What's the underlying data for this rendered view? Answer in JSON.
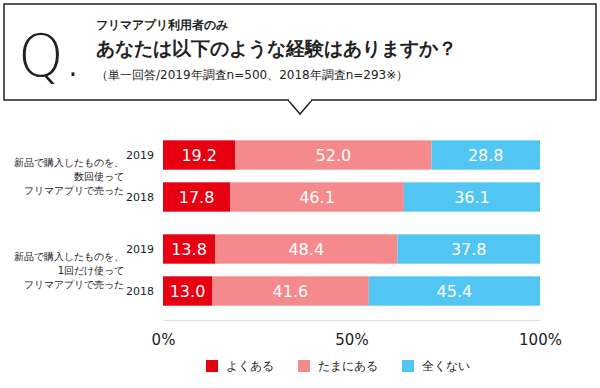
{
  "chart_data": {
    "type": "bar",
    "orientation": "horizontal",
    "stacked": true,
    "data_labels": true,
    "legend": "bottom",
    "grid": false,
    "badge": "Q.",
    "subtitle": "フリマアプリ利用者のみ",
    "title": "あなたは以下のような経験はありますか？",
    "note": "（単一回答/2019年調査n=500、2018年調査n=293※）",
    "categories": [
      "2019",
      "2018",
      "2019",
      "2018"
    ],
    "group_labels": [
      [
        "新品で購入したものを、",
        "数回使って",
        "フリマアプリで売った"
      ],
      null,
      [
        "新品で購入したものを、",
        "1回だけ使って",
        "フリマアプリで売った"
      ],
      null
    ],
    "xlim": [
      0,
      100
    ],
    "xticks": [
      {
        "value": 0,
        "label": "0%"
      },
      {
        "value": 50,
        "label": "50%"
      },
      {
        "value": 100,
        "label": "100%"
      }
    ],
    "series": [
      {
        "name": "よくある",
        "color": "#e60012",
        "values": [
          19.2,
          17.8,
          13.8,
          13.0
        ],
        "value_labels": [
          "19.2",
          "17.8",
          "13.8",
          "13.0"
        ]
      },
      {
        "name": "たまにある",
        "color": "#f58a8c",
        "values": [
          52.0,
          46.1,
          48.4,
          41.6
        ],
        "value_labels": [
          "52.0",
          "46.1",
          "48.4",
          "41.6"
        ]
      },
      {
        "name": "全くない",
        "color": "#52c6f3",
        "values": [
          28.8,
          36.1,
          37.8,
          45.4
        ],
        "value_labels": [
          "28.8",
          "36.1",
          "37.8",
          "45.4"
        ]
      }
    ]
  }
}
